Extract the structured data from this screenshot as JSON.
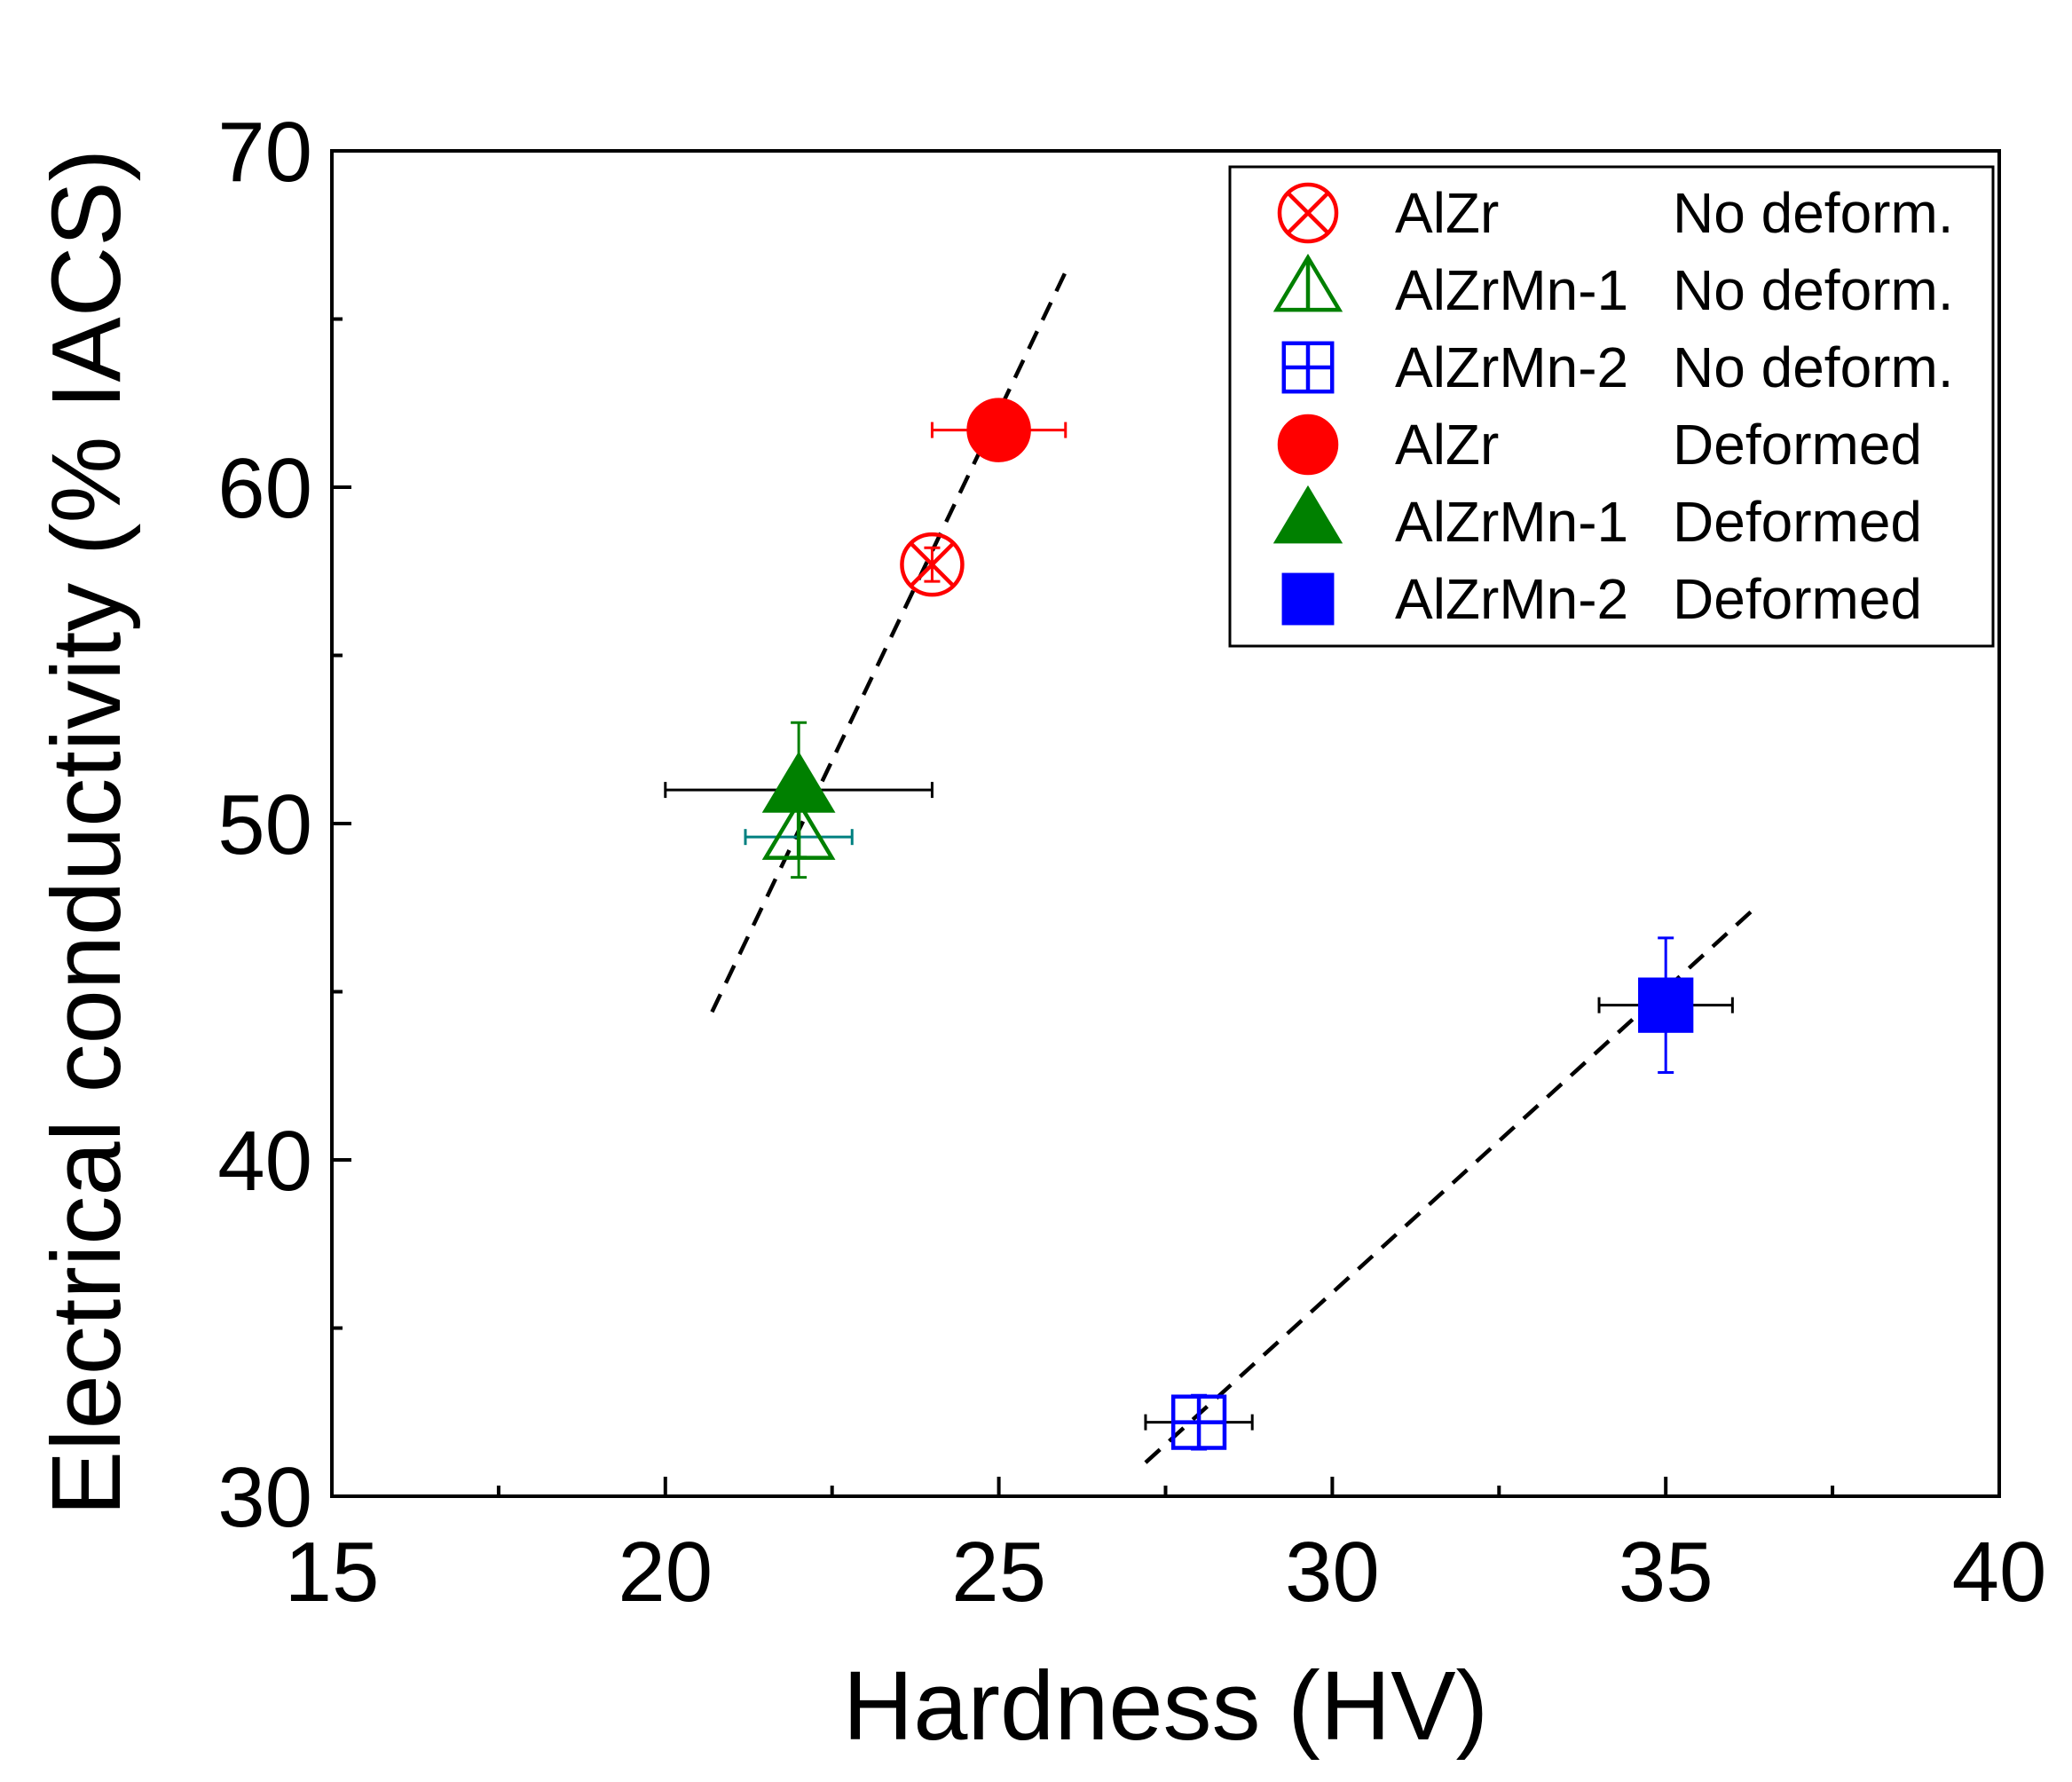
{
  "chart_data": {
    "type": "scatter",
    "title": "",
    "xlabel": "Hardness (HV)",
    "ylabel": "Electrical conductivity (% IACS)",
    "xlim": [
      15,
      40
    ],
    "ylim": [
      30,
      70
    ],
    "xticks": [
      15,
      20,
      25,
      30,
      35,
      40
    ],
    "yticks": [
      30,
      40,
      50,
      60,
      70
    ],
    "legend_position": "top-right",
    "grid": false,
    "series": [
      {
        "name": "AlZr No deform.",
        "alloy": "AlZr",
        "condition": "No deform.",
        "marker": "circle-x",
        "filled": false,
        "color": "#ff0000",
        "x": 24.0,
        "y": 57.7,
        "xerr": 0.0,
        "yerr": 0.5,
        "errcolor": "#ff0000"
      },
      {
        "name": "AlZrMn-1 No deform.",
        "alloy": "AlZrMn-1",
        "condition": "No deform.",
        "marker": "triangle-plus",
        "filled": false,
        "color": "#008000",
        "x": 22.0,
        "y": 49.6,
        "xerr": 0.8,
        "yerr": 1.2,
        "errcolor": "#008080"
      },
      {
        "name": "AlZrMn-2 No deform.",
        "alloy": "AlZrMn-2",
        "condition": "No deform.",
        "marker": "square-plus",
        "filled": false,
        "color": "#0000ff",
        "x": 28.0,
        "y": 32.2,
        "xerr": 0.8,
        "yerr": 0.8,
        "errcolor": "#000000"
      },
      {
        "name": "AlZr Deformed",
        "alloy": "AlZr",
        "condition": "Deformed",
        "marker": "circle",
        "filled": true,
        "color": "#ff0000",
        "x": 25.0,
        "y": 61.7,
        "xerr": 1.0,
        "yerr": 0.8,
        "errcolor": "#ff0000"
      },
      {
        "name": "AlZrMn-1 Deformed",
        "alloy": "AlZrMn-1",
        "condition": "Deformed",
        "marker": "triangle",
        "filled": true,
        "color": "#008000",
        "x": 22.0,
        "y": 51.0,
        "xerr": 2.0,
        "yerr": 2.0,
        "errcolor": "#000000"
      },
      {
        "name": "AlZrMn-2 Deformed",
        "alloy": "AlZrMn-2",
        "condition": "Deformed",
        "marker": "square",
        "filled": true,
        "color": "#0000ff",
        "x": 35.0,
        "y": 44.6,
        "xerr": 1.0,
        "yerr": 2.0,
        "errcolor": "#000000"
      }
    ],
    "fit_lines": [
      {
        "x": [
          20.7,
          26.0
        ],
        "y": [
          44.4,
          66.4
        ]
      },
      {
        "x": [
          27.2,
          36.4
        ],
        "y": [
          31.0,
          47.6
        ]
      }
    ]
  }
}
